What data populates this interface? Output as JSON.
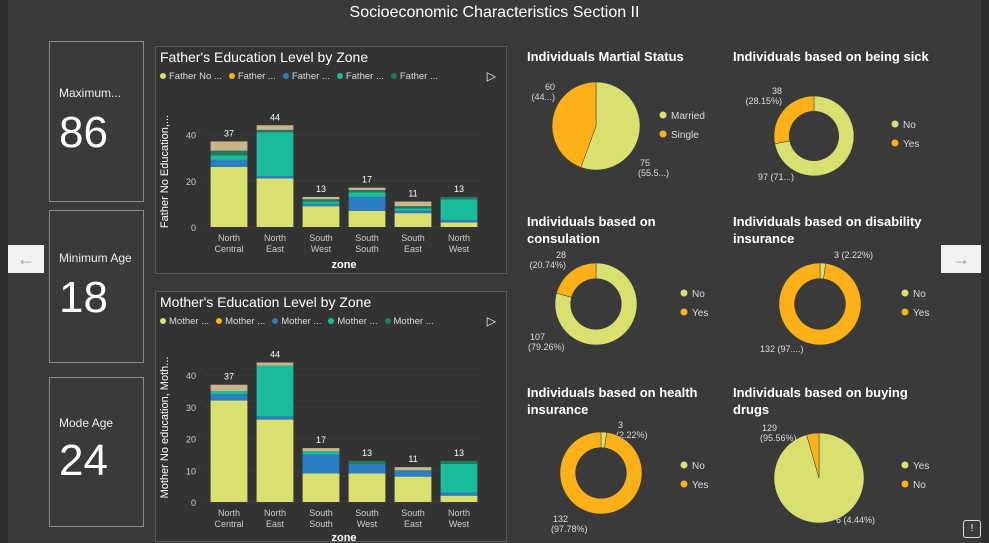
{
  "page_title": "Socioeconomic Characteristics Section II",
  "kpis": [
    {
      "label": "Maximum...",
      "value": "86"
    },
    {
      "label": "Minimum Age",
      "value": "18"
    },
    {
      "label": "Mode Age",
      "value": "24"
    }
  ],
  "nav": {
    "prev_icon": "←",
    "next_icon": "→",
    "info_icon": "!"
  },
  "colors": {
    "c1": "#d9e06f",
    "c2": "#c9b58a",
    "c3": "#2a7ec1",
    "c4": "#1abc9c",
    "c5": "#1f7a60",
    "orange": "#fbb117"
  },
  "chart_data": [
    {
      "id": "father",
      "type": "bar",
      "title": "Father's Education Level by Zone",
      "legend": [
        "Father No ...",
        "Father ...",
        "Father ...",
        "Father ...",
        "Father ..."
      ],
      "legend_colors": [
        "#d9e06f",
        "#fbb117",
        "#2a7ec1",
        "#1abc9c",
        "#1f7a60"
      ],
      "xlabel": "zone",
      "ylabel": "Father No Education,...",
      "ylim": [
        0,
        48
      ],
      "yticks": [
        "0",
        "20",
        "40"
      ],
      "categories": [
        "North Central",
        "North East",
        "South West",
        "South South",
        "South East",
        "North West"
      ],
      "totals": [
        "37",
        "44",
        "13",
        "17",
        "11",
        "13"
      ],
      "series": [
        {
          "color": "#d9e06f",
          "values": [
            26,
            21,
            9,
            7,
            6,
            2
          ]
        },
        {
          "color": "#2a7ec1",
          "values": [
            3,
            1,
            1,
            6,
            1,
            1
          ]
        },
        {
          "color": "#1abc9c",
          "values": [
            2,
            19,
            1,
            2,
            1,
            9
          ]
        },
        {
          "color": "#1f7a60",
          "values": [
            2,
            1,
            1,
            1,
            1,
            1
          ]
        },
        {
          "color": "#c9b58a",
          "values": [
            4,
            2,
            1,
            1,
            2,
            0
          ]
        }
      ]
    },
    {
      "id": "mother",
      "type": "bar",
      "title": "Mother's Education Level by Zone",
      "legend": [
        "Mother ...",
        "Mother ...",
        "Mother ...",
        "Mother ...",
        "Mother ..."
      ],
      "legend_colors": [
        "#d9e06f",
        "#fbb117",
        "#2a7ec1",
        "#1abc9c",
        "#1f7a60"
      ],
      "xlabel": "zone",
      "ylabel": "Mother No education, Moth...",
      "ylim": [
        0,
        47
      ],
      "yticks": [
        "0",
        "10",
        "20",
        "30",
        "40"
      ],
      "categories": [
        "North Central",
        "North East",
        "South South",
        "South West",
        "South East",
        "North West"
      ],
      "totals": [
        "37",
        "44",
        "17",
        "13",
        "11",
        "13"
      ],
      "series": [
        {
          "color": "#d9e06f",
          "values": [
            32,
            26,
            9,
            9,
            8,
            2
          ]
        },
        {
          "color": "#2a7ec1",
          "values": [
            2,
            1,
            6,
            3,
            2,
            1
          ]
        },
        {
          "color": "#1abc9c",
          "values": [
            1,
            16,
            1,
            0,
            0,
            9
          ]
        },
        {
          "color": "#1f7a60",
          "values": [
            0,
            0,
            0,
            1,
            0,
            1
          ]
        },
        {
          "color": "#c9b58a",
          "values": [
            2,
            1,
            1,
            0,
            1,
            0
          ]
        }
      ]
    },
    {
      "id": "marital",
      "type": "pie",
      "title": "Individuals Martial Status",
      "donut": false,
      "slices": [
        {
          "label": "Married",
          "value": 75,
          "text": "75",
          "pct": "(55.5...)",
          "color": "#d9e06f"
        },
        {
          "label": "Single",
          "value": 60,
          "text": "60",
          "pct": "(44...)",
          "color": "#fbb117"
        }
      ]
    },
    {
      "id": "sick",
      "type": "pie",
      "title": "Individuals based on being sick",
      "donut": true,
      "slices": [
        {
          "label": "No",
          "value": 97,
          "text": "97 (71...)",
          "pct": "",
          "color": "#d9e06f"
        },
        {
          "label": "Yes",
          "value": 38,
          "text": "38",
          "pct": "(28.15%)",
          "color": "#fbb117"
        }
      ]
    },
    {
      "id": "consultation",
      "type": "pie",
      "title": "Individuals based on consulation",
      "donut": true,
      "slices": [
        {
          "label": "No",
          "value": 107,
          "text": "107",
          "pct": "(79.26%)",
          "color": "#d9e06f"
        },
        {
          "label": "Yes",
          "value": 28,
          "text": "28",
          "pct": "(20.74%)",
          "color": "#fbb117"
        }
      ]
    },
    {
      "id": "disability",
      "type": "pie",
      "title": "Individuals based on disability insurance",
      "donut": true,
      "slices": [
        {
          "label": "No",
          "value": 3,
          "text": "3 (2.22%)",
          "pct": "",
          "color": "#d9e06f"
        },
        {
          "label": "Yes",
          "value": 132,
          "text": "132 (97....)",
          "pct": "",
          "color": "#fbb117"
        }
      ]
    },
    {
      "id": "health",
      "type": "pie",
      "title": "Individuals based on health insurance",
      "donut": true,
      "slices": [
        {
          "label": "No",
          "value": 3,
          "text": "3",
          "pct": "(2.22%)",
          "color": "#d9e06f"
        },
        {
          "label": "Yes",
          "value": 132,
          "text": "132",
          "pct": "(97.78%)",
          "color": "#fbb117"
        }
      ]
    },
    {
      "id": "drugs",
      "type": "pie",
      "title": "Individuals based on buying drugs",
      "donut": false,
      "slices": [
        {
          "label": "Yes",
          "value": 129,
          "text": "129",
          "pct": "(95.56%)",
          "color": "#d9e06f"
        },
        {
          "label": "No",
          "value": 6,
          "text": "6 (4.44%)",
          "pct": "",
          "color": "#fbb117"
        }
      ]
    }
  ]
}
